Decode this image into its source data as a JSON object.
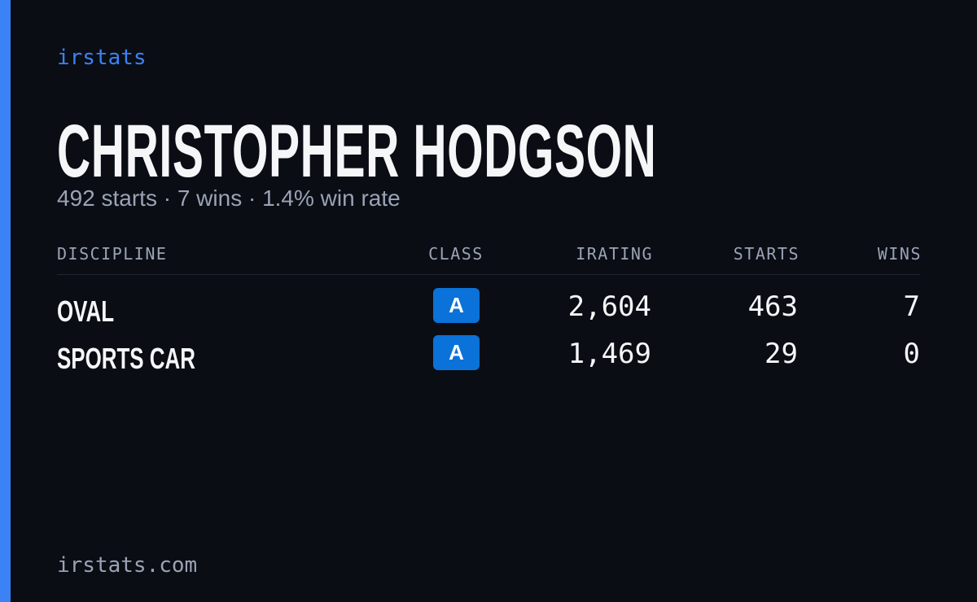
{
  "header": {
    "brand": "irstats",
    "name": "CHRISTOPHER HODGSON",
    "summary": "492 starts · 7 wins · 1.4% win rate"
  },
  "table": {
    "headers": [
      "DISCIPLINE",
      "CLASS",
      "IRATING",
      "STARTS",
      "WINS"
    ],
    "rows": [
      [
        "OVAL",
        "A",
        "2,604",
        "463",
        "7"
      ],
      [
        "SPORTS CAR",
        "A",
        "1,469",
        "29",
        "0"
      ]
    ]
  },
  "footer": {
    "domain": "irstats.com"
  }
}
